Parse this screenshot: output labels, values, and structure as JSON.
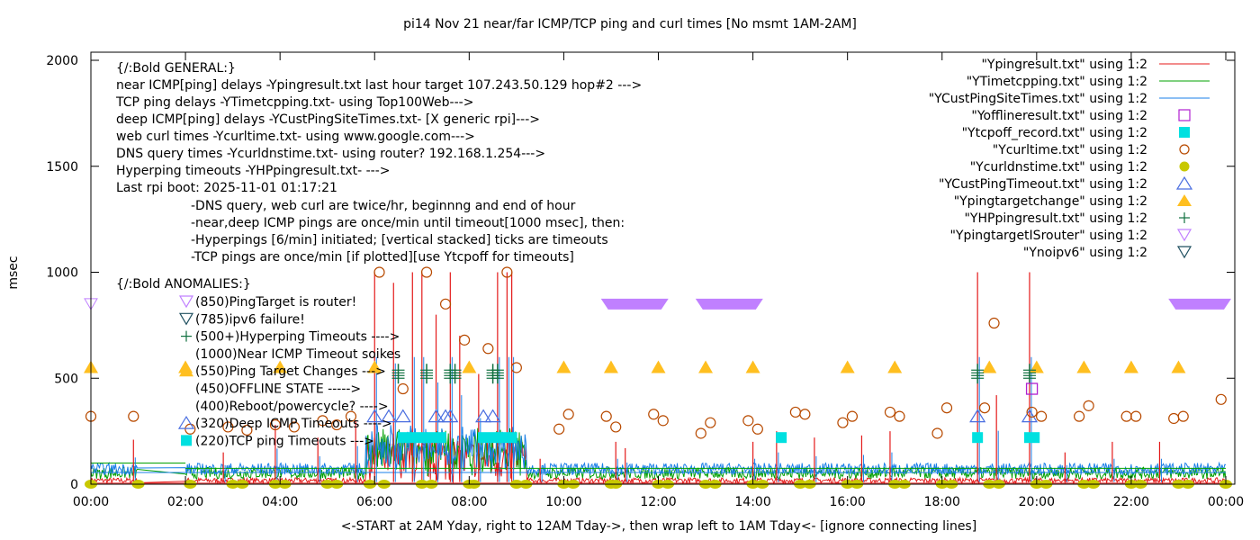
{
  "chart_data": {
    "type": "line",
    "title": "pi14 Nov 21  near/far ICMP/TCP ping and curl times [No msmt 1AM-2AM]",
    "xlabel": "<-START at 2AM Yday, right to 12AM Tday->, then wrap left to 1AM Tday<- [ignore connecting lines]",
    "ylabel": "msec",
    "xlim_hours": [
      0,
      24
    ],
    "ylim": [
      0,
      2000
    ],
    "x_ticks": [
      "00:00",
      "02:00",
      "04:00",
      "06:00",
      "08:00",
      "10:00",
      "12:00",
      "14:00",
      "16:00",
      "18:00",
      "20:00",
      "22:00",
      "00:00"
    ],
    "y_ticks": [
      "0",
      "500",
      "1000",
      "1500",
      "2000"
    ],
    "y_tick_values": [
      0,
      500,
      1000,
      1500,
      2000
    ],
    "colors": {
      "ping": "#e41a1a",
      "tcp": "#00a000",
      "cust": "#1a7fe8",
      "offline": "#b020d0",
      "tcpoff": "#00e0e0",
      "curl": "#b84a00",
      "dns": "#c8c800",
      "custTimeout": "#4a6ee0",
      "targetChange": "#ffbf20",
      "hp": "#107040",
      "isRouter": "#c080ff",
      "noipv6": "#205060"
    },
    "legend_position": "top-right",
    "legend": [
      {
        "label": "\"Ypingresult.txt\" using 1:2",
        "marker": "line",
        "color_key": "ping"
      },
      {
        "label": "\"YTimetcpping.txt\" using 1:2",
        "marker": "line",
        "color_key": "tcp"
      },
      {
        "label": "\"YCustPingSiteTimes.txt\" using 1:2",
        "marker": "line",
        "color_key": "cust"
      },
      {
        "label": "\"Yofflineresult.txt\" using 1:2",
        "marker": "open-square",
        "color_key": "offline"
      },
      {
        "label": "\"Ytcpoff_record.txt\" using 1:2",
        "marker": "filled-square",
        "color_key": "tcpoff"
      },
      {
        "label": "\"Ycurltime.txt\" using 1:2",
        "marker": "open-circle",
        "color_key": "curl"
      },
      {
        "label": "\"Ycurldnstime.txt\" using 1:2",
        "marker": "filled-circle",
        "color_key": "dns"
      },
      {
        "label": "\"YCustPingTimeout.txt\" using 1:2",
        "marker": "open-triangle",
        "color_key": "custTimeout"
      },
      {
        "label": "\"Ypingtargetchange\" using 1:2",
        "marker": "filled-triangle",
        "color_key": "targetChange"
      },
      {
        "label": "\"YHPpingresult.txt\" using 1:2",
        "marker": "plus",
        "color_key": "hp"
      },
      {
        "label": "\"YpingtargetISrouter\" using 1:2",
        "marker": "open-down-triangle",
        "color_key": "isRouter"
      },
      {
        "label": "\"Ynoipv6\" using 1:2",
        "marker": "open-down-triangle",
        "color_key": "noipv6"
      }
    ],
    "annotations_general": [
      "{/:Bold GENERAL:}",
      "near ICMP[ping] delays -Ypingresult.txt last hour target 107.243.50.129 hop#2 --->",
      "TCP ping delays -YTimetcpping.txt- using Top100Web--->",
      "deep ICMP[ping] delays -YCustPingSiteTimes.txt- [X generic rpi]--->",
      "web curl times -Ycurltime.txt- using www.google.com--->",
      "DNS query times -Ycurldnstime.txt- using router? 192.168.1.254--->",
      "Hyperping timeouts -YHPpingresult.txt- --->",
      "Last rpi boot: 2025-11-01 01:17:21"
    ],
    "annotations_notes": [
      "-DNS query, web curl are twice/hr, beginnng and end of hour",
      "-near,deep ICMP pings are once/min until timeout[1000 msec], then:",
      "  -Hyperpings [6/min] initiated; [vertical stacked] ticks are timeouts",
      "-TCP pings are once/min [if plotted][use Ytcpoff for timeouts]"
    ],
    "annotations_anomalies_title": "{/:Bold ANOMALIES:}",
    "annotations_anomalies": [
      {
        "text": "(850)PingTarget is router!",
        "marker": "open-down-triangle",
        "color_key": "isRouter"
      },
      {
        "text": "(785)ipv6 failure!",
        "marker": "open-down-triangle",
        "color_key": "noipv6"
      },
      {
        "text": "(500+)Hyperping Timeouts ---->",
        "marker": "plus",
        "color_key": "hp"
      },
      {
        "text": "(1000)Near ICMP Timeout soikes",
        "marker": "none",
        "color_key": "ping"
      },
      {
        "text": "(550)Ping Target Changes --->",
        "marker": "filled-triangle",
        "color_key": "targetChange"
      },
      {
        "text": "(450)OFFLINE STATE ----->",
        "marker": "none",
        "color_key": "offline"
      },
      {
        "text": "(400)Reboot/powercycle? ---->",
        "marker": "none",
        "color_key": "offline"
      },
      {
        "text": "(320)Deep ICMP Timeouts ---->",
        "marker": "open-triangle",
        "color_key": "custTimeout"
      },
      {
        "text": "(220)TCP ping Timeouts --->",
        "marker": "filled-square",
        "color_key": "tcpoff"
      }
    ],
    "series_points": {
      "targetChange_hours": [
        0,
        2,
        4,
        6,
        8,
        10,
        11,
        12,
        13,
        14,
        16,
        17,
        19,
        20,
        21,
        22,
        23
      ],
      "targetChange_value": 550,
      "isRouter_bands_hours": [
        [
          10.9,
          12.1
        ],
        [
          12.9,
          14.1
        ],
        [
          22.9,
          24.0
        ]
      ],
      "isRouter_value": 850,
      "isRouter_point_hours": [
        0
      ],
      "curl_points": [
        [
          0,
          320
        ],
        [
          0.9,
          320
        ],
        [
          2.1,
          260
        ],
        [
          2.9,
          270
        ],
        [
          3.3,
          255
        ],
        [
          3.9,
          280
        ],
        [
          4.3,
          270
        ],
        [
          4.9,
          300
        ],
        [
          5.2,
          280
        ],
        [
          5.5,
          320
        ],
        [
          6.1,
          1000
        ],
        [
          6.6,
          450
        ],
        [
          7.1,
          1000
        ],
        [
          7.5,
          850
        ],
        [
          7.9,
          680
        ],
        [
          8.4,
          640
        ],
        [
          8.8,
          1000
        ],
        [
          9.0,
          550
        ],
        [
          9.9,
          260
        ],
        [
          10.1,
          330
        ],
        [
          10.9,
          320
        ],
        [
          11.1,
          270
        ],
        [
          11.9,
          330
        ],
        [
          12.1,
          300
        ],
        [
          12.9,
          240
        ],
        [
          13.1,
          290
        ],
        [
          13.9,
          300
        ],
        [
          14.1,
          260
        ],
        [
          14.9,
          340
        ],
        [
          15.1,
          330
        ],
        [
          15.9,
          290
        ],
        [
          16.1,
          320
        ],
        [
          16.9,
          340
        ],
        [
          17.1,
          320
        ],
        [
          17.9,
          240
        ],
        [
          18.1,
          360
        ],
        [
          18.9,
          360
        ],
        [
          19.1,
          760
        ],
        [
          19.9,
          340
        ],
        [
          20.1,
          320
        ],
        [
          20.9,
          320
        ],
        [
          21.1,
          370
        ],
        [
          21.9,
          320
        ],
        [
          22.1,
          320
        ],
        [
          22.9,
          310
        ],
        [
          23.1,
          320
        ],
        [
          23.9,
          400
        ]
      ],
      "dns_hours": [
        0,
        1,
        2.1,
        3,
        3.2,
        3.9,
        4.1,
        5,
        5.2,
        5.9,
        6.2,
        7,
        7.2,
        8,
        8.1,
        9,
        9.2,
        10,
        10.2,
        11,
        11.1,
        12,
        12.2,
        13,
        13.2,
        14,
        14.2,
        15,
        15.2,
        16,
        16.2,
        17,
        17.2,
        18,
        18.2,
        19,
        19.2,
        20,
        20.2,
        21,
        21.2,
        22,
        22.2,
        23,
        23.2,
        24
      ],
      "dns_value": 0,
      "hp_hours": [
        6.5,
        7.1,
        7.6,
        7.7,
        8.5,
        8.6,
        18.75,
        19.85
      ],
      "hp_value": 500,
      "custTimeout_hours": [
        6.0,
        6.3,
        6.6,
        7.3,
        7.5,
        7.6,
        8.3,
        8.5,
        18.75,
        19.85
      ],
      "custTimeout_value": 320,
      "tcpoff_hours": [
        [
          6.6,
          7.0
        ],
        [
          7.2,
          7.4
        ],
        [
          8.3,
          8.5
        ],
        [
          8.7,
          8.9
        ],
        [
          14.6,
          14.6
        ],
        [
          18.75,
          18.75
        ],
        [
          19.85,
          19.95
        ]
      ],
      "tcpoff_value": 220,
      "offline_hours": [
        19.9
      ],
      "offline_value": 450,
      "ping_spikes_hours": [
        0.9,
        2.8,
        3.9,
        4.8,
        5.6,
        6.0,
        6.4,
        6.8,
        7.0,
        7.3,
        7.6,
        7.8,
        8.2,
        8.6,
        8.8,
        8.9,
        9.5,
        11.1,
        11.3,
        14.0,
        14.5,
        15.3,
        16.3,
        16.9,
        18.75,
        19.15,
        19.85,
        20.6,
        21.6,
        22.6
      ],
      "ping_spikes_values": [
        210,
        150,
        280,
        220,
        300,
        1000,
        950,
        1000,
        1000,
        800,
        1000,
        700,
        520,
        1000,
        1000,
        1000,
        120,
        200,
        170,
        200,
        250,
        220,
        230,
        250,
        1000,
        420,
        1000,
        150,
        200,
        200
      ]
    }
  }
}
